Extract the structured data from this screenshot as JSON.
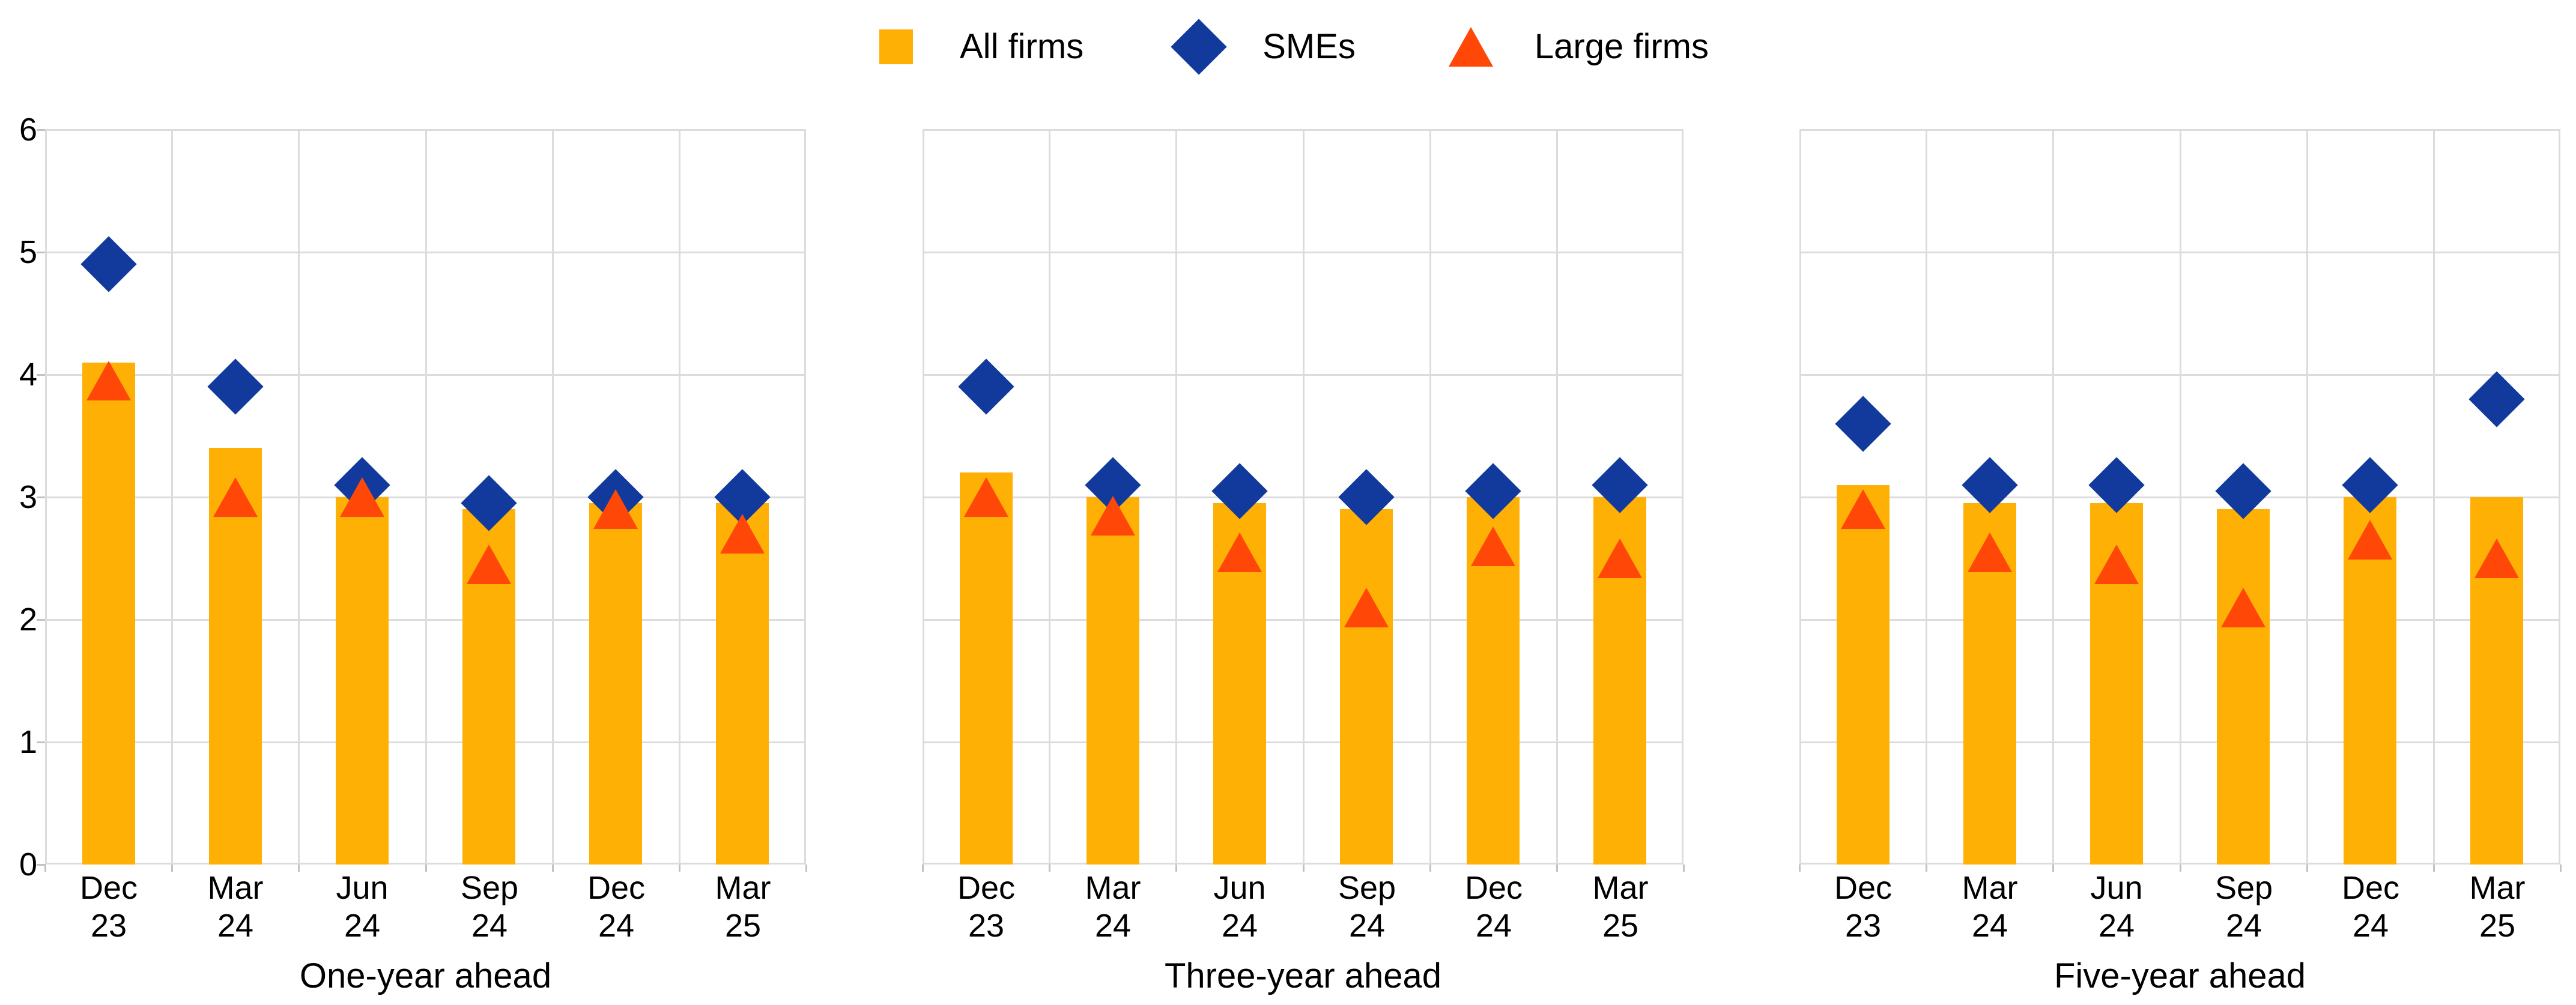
{
  "legend": {
    "items": [
      {
        "label": "All firms",
        "marker": "bar-swatch"
      },
      {
        "label": "SMEs",
        "marker": "diamond"
      },
      {
        "label": "Large firms",
        "marker": "triangle"
      }
    ]
  },
  "colors": {
    "all_firms": "#FFB005",
    "smes": "#123A9C",
    "large_firms": "#FF4708",
    "gridline": "#DCDCDC",
    "axis_tick": "#C2C2C2",
    "text": "#000000",
    "background": "#FFFFFF"
  },
  "y_axis": {
    "min": 0,
    "max": 6,
    "tick_labels": [
      "0",
      "1",
      "2",
      "3",
      "4",
      "5",
      "6"
    ]
  },
  "chart_data": [
    {
      "type": "bar",
      "title": "One-year ahead",
      "categories": [
        "Dec 23",
        "Mar 24",
        "Jun 24",
        "Sep 24",
        "Dec 24",
        "Mar 25"
      ],
      "ylim": [
        0,
        6
      ],
      "grid": true,
      "legend_position": "top-center",
      "series": [
        {
          "name": "All firms",
          "type": "bar",
          "marker": "bar",
          "values": [
            4.1,
            3.4,
            3.0,
            2.9,
            2.95,
            2.95
          ]
        },
        {
          "name": "SMEs",
          "type": "scatter",
          "marker": "diamond",
          "values": [
            4.9,
            3.9,
            3.1,
            2.95,
            3.0,
            3.0
          ]
        },
        {
          "name": "Large firms",
          "type": "scatter",
          "marker": "triangle",
          "values": [
            3.95,
            3.0,
            3.0,
            2.45,
            2.9,
            2.7
          ]
        }
      ]
    },
    {
      "type": "bar",
      "title": "Three-year ahead",
      "categories": [
        "Dec 23",
        "Mar 24",
        "Jun 24",
        "Sep 24",
        "Dec 24",
        "Mar 25"
      ],
      "ylim": [
        0,
        6
      ],
      "grid": true,
      "legend_position": "top-center",
      "series": [
        {
          "name": "All firms",
          "type": "bar",
          "marker": "bar",
          "values": [
            3.2,
            3.0,
            2.95,
            2.9,
            3.0,
            3.0
          ]
        },
        {
          "name": "SMEs",
          "type": "scatter",
          "marker": "diamond",
          "values": [
            3.9,
            3.1,
            3.05,
            3.0,
            3.05,
            3.1
          ]
        },
        {
          "name": "Large firms",
          "type": "scatter",
          "marker": "triangle",
          "values": [
            3.0,
            2.85,
            2.55,
            2.1,
            2.6,
            2.5
          ]
        }
      ]
    },
    {
      "type": "bar",
      "title": "Five-year ahead",
      "categories": [
        "Dec 23",
        "Mar 24",
        "Jun 24",
        "Sep 24",
        "Dec 24",
        "Mar 25"
      ],
      "ylim": [
        0,
        6
      ],
      "grid": true,
      "legend_position": "top-center",
      "series": [
        {
          "name": "All firms",
          "type": "bar",
          "marker": "bar",
          "values": [
            3.1,
            2.95,
            2.95,
            2.9,
            3.0,
            3.0
          ]
        },
        {
          "name": "SMEs",
          "type": "scatter",
          "marker": "diamond",
          "values": [
            3.6,
            3.1,
            3.1,
            3.05,
            3.1,
            3.8
          ]
        },
        {
          "name": "Large firms",
          "type": "scatter",
          "marker": "triangle",
          "values": [
            2.9,
            2.55,
            2.45,
            2.1,
            2.65,
            2.5
          ]
        }
      ]
    }
  ]
}
